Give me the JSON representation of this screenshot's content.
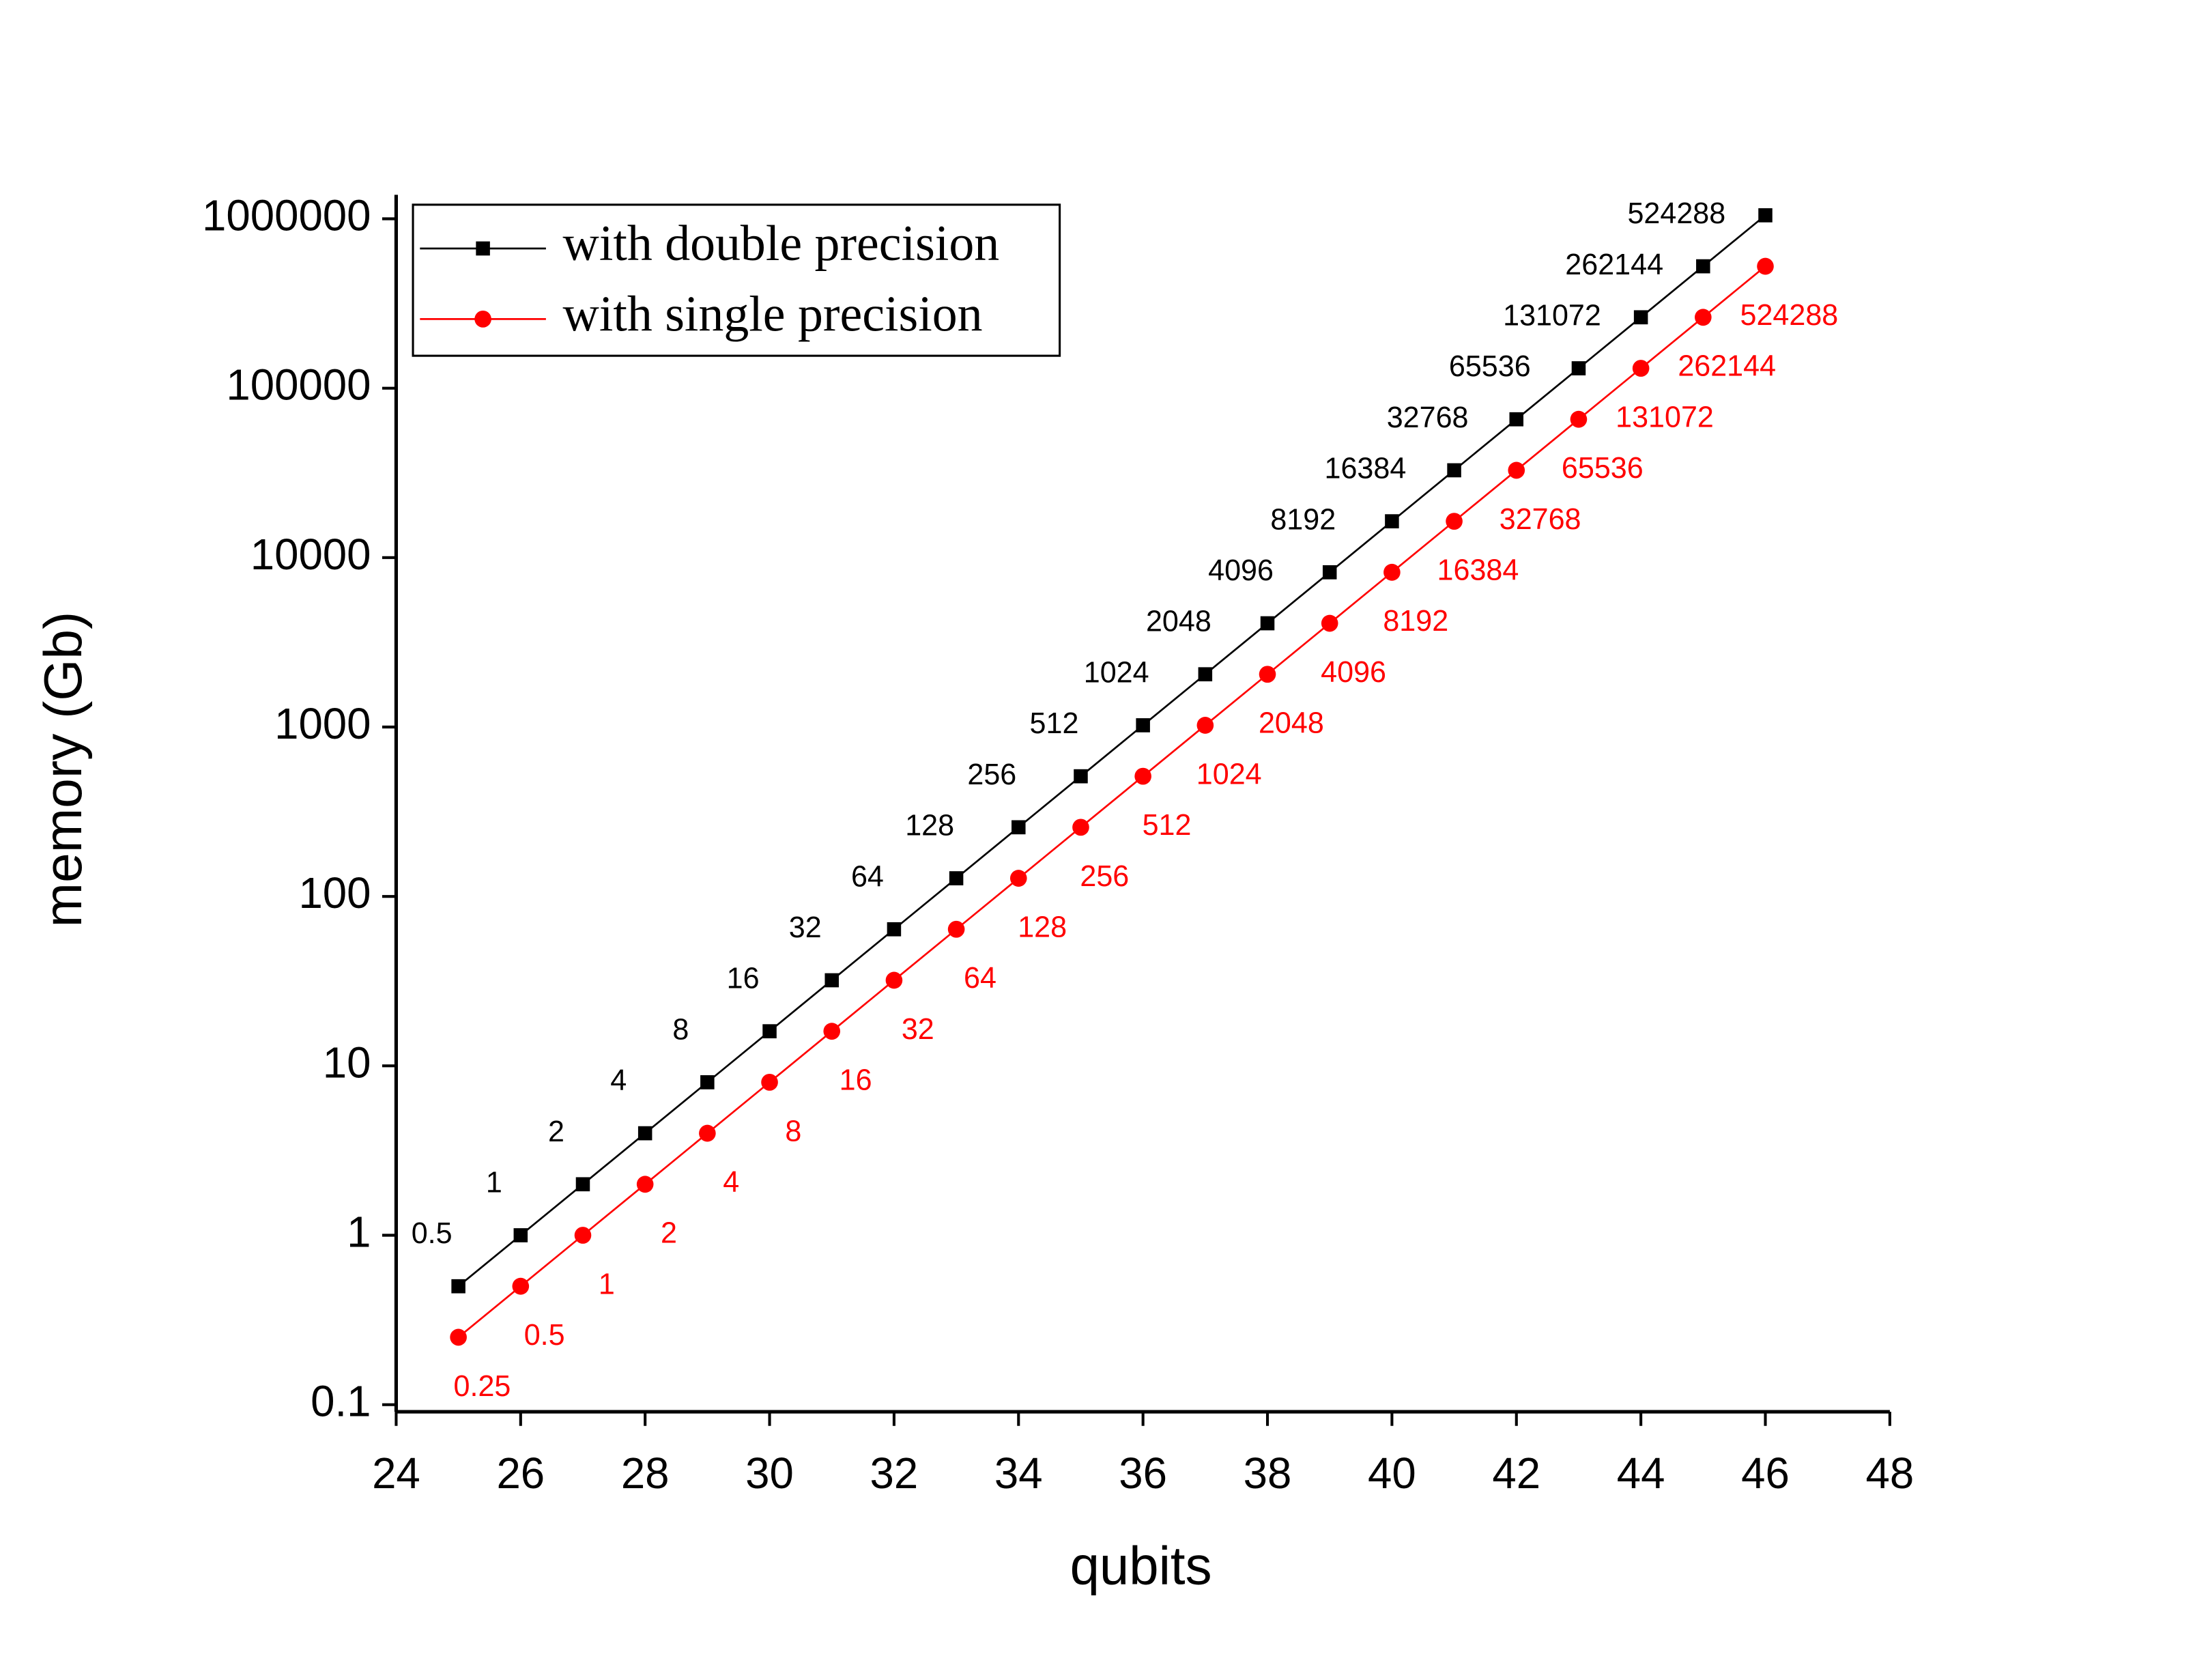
{
  "chart_data": {
    "type": "line",
    "x_label": "qubits",
    "y_label": "memory (Gb)",
    "y_log": true,
    "legend": "upper left",
    "x": [
      25,
      26,
      27,
      28,
      29,
      30,
      31,
      32,
      33,
      34,
      35,
      36,
      37,
      38,
      39,
      40,
      41,
      42,
      43,
      44,
      45,
      46
    ],
    "series": [
      {
        "name": "with double precision",
        "color": "#000000",
        "marker": "square",
        "label_position": "above-left",
        "values": [
          0.5,
          1,
          2,
          4,
          8,
          16,
          32,
          64,
          128,
          256,
          512,
          1024,
          2048,
          4096,
          8192,
          16384,
          32768,
          65536,
          131072,
          262144,
          524288,
          1048576
        ],
        "value_labels": [
          "0.5",
          "1",
          "2",
          "4",
          "8",
          "16",
          "32",
          "64",
          "128",
          "256",
          "512",
          "1024",
          "2048",
          "4096",
          "8192",
          "16384",
          "32768",
          "65536",
          "131072",
          "262144",
          "524288",
          null
        ]
      },
      {
        "name": "with single precision",
        "color": "#ff0000",
        "marker": "circle",
        "label_position": "below-right",
        "values": [
          0.25,
          0.5,
          1,
          2,
          4,
          8,
          16,
          32,
          64,
          128,
          256,
          512,
          1024,
          2048,
          4096,
          8192,
          16384,
          32768,
          65536,
          131072,
          262144,
          524288
        ]
      }
    ],
    "xlim": [
      24,
      48
    ],
    "xticks": [
      24,
      26,
      28,
      30,
      32,
      34,
      36,
      38,
      40,
      42,
      44,
      46,
      48
    ],
    "ylim": [
      0.0908,
      1385000
    ],
    "yticks": [
      0.1,
      1,
      10,
      100,
      1000,
      10000,
      100000,
      1000000
    ]
  }
}
